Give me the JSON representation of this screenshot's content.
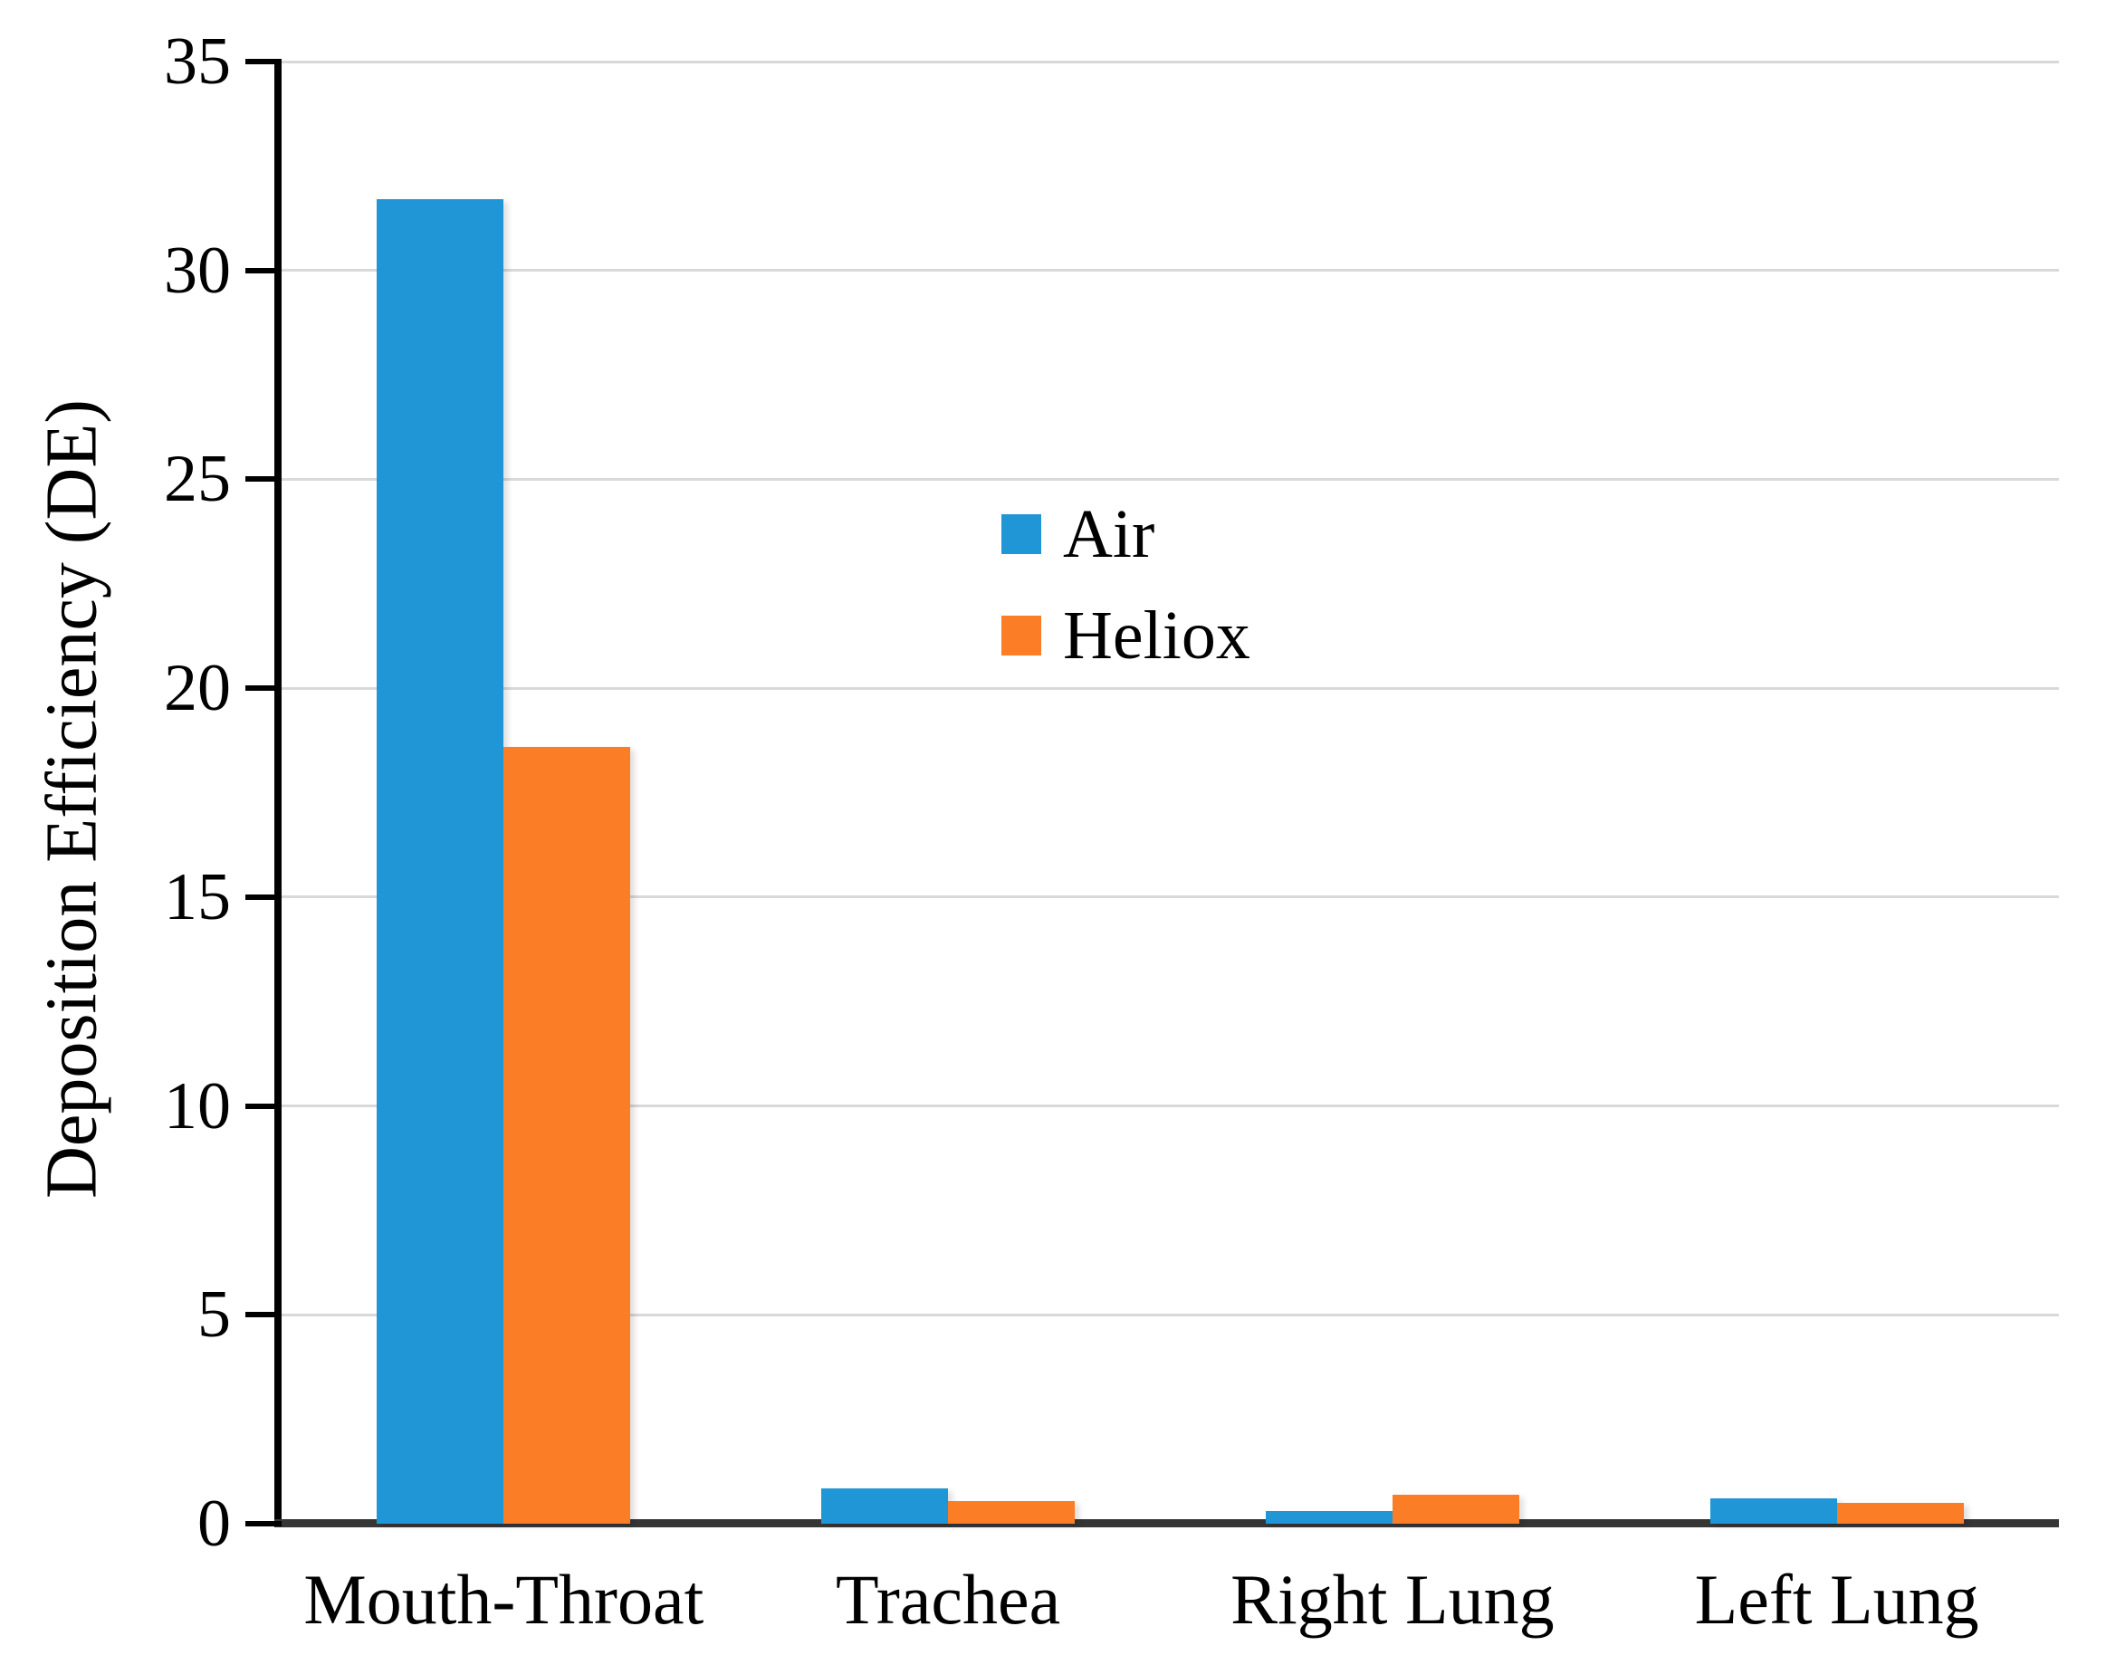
{
  "chart_data": {
    "type": "bar",
    "title": "",
    "xlabel": "",
    "ylabel": "Deposition Efficiency (DE)",
    "categories": [
      "Mouth-Throat",
      "Trachea",
      "Right Lung",
      "Left Lung"
    ],
    "series": [
      {
        "name": "Air",
        "color": "#2196d6",
        "values": [
          31.7,
          0.85,
          0.3,
          0.6
        ]
      },
      {
        "name": "Heliox",
        "color": "#fb7d26",
        "values": [
          18.6,
          0.55,
          0.7,
          0.5
        ]
      }
    ],
    "ylim": [
      0,
      35
    ],
    "yticks": [
      0,
      5,
      10,
      15,
      20,
      25,
      30,
      35
    ],
    "grid": true,
    "legend_position": "center-of-plot",
    "colors": {
      "gridline": "#d9d9d9",
      "baseline": "#363636",
      "y_axis_line": "#000000",
      "text": "#000000",
      "background": "#ffffff"
    }
  }
}
